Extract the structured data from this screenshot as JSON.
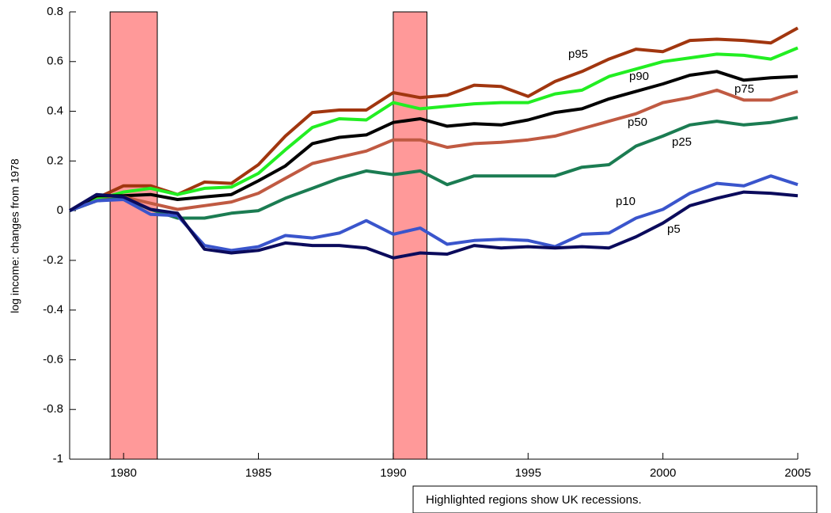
{
  "chart_data": {
    "type": "line",
    "y_label": "log income: changes from 1978",
    "note": "Highlighted regions show UK recessions.",
    "x": [
      1978,
      1979,
      1980,
      1981,
      1982,
      1983,
      1984,
      1985,
      1986,
      1987,
      1988,
      1989,
      1990,
      1991,
      1992,
      1993,
      1994,
      1995,
      1996,
      1997,
      1998,
      1999,
      2000,
      2001,
      2002,
      2003,
      2004,
      2005
    ],
    "xlim": [
      1978,
      2005
    ],
    "xticks": [
      1980,
      1985,
      1990,
      1995,
      2000,
      2005
    ],
    "ylim": [
      -1,
      0.8
    ],
    "yticks": [
      -1,
      -0.8,
      -0.6,
      -0.4,
      -0.2,
      0,
      0.2,
      0.4,
      0.6,
      0.8
    ],
    "recessions": [
      [
        1979.5,
        1981.25
      ],
      [
        1990,
        1991.25
      ]
    ],
    "recession_color": "#ff9999",
    "series": [
      {
        "name": "p95",
        "color": "#a1360f",
        "values": [
          0,
          0.05,
          0.1,
          0.1,
          0.065,
          0.115,
          0.11,
          0.185,
          0.3,
          0.395,
          0.405,
          0.405,
          0.475,
          0.455,
          0.465,
          0.505,
          0.5,
          0.46,
          0.52,
          0.56,
          0.61,
          0.65,
          0.64,
          0.685,
          0.69,
          0.685,
          0.675,
          0.735
        ]
      },
      {
        "name": "p90",
        "color": "#22ee22",
        "values": [
          0,
          0.045,
          0.075,
          0.09,
          0.065,
          0.09,
          0.095,
          0.15,
          0.245,
          0.335,
          0.37,
          0.365,
          0.435,
          0.41,
          0.42,
          0.43,
          0.435,
          0.435,
          0.47,
          0.485,
          0.54,
          0.57,
          0.6,
          0.615,
          0.63,
          0.625,
          0.61,
          0.655
        ]
      },
      {
        "name": "p75",
        "color": "#000000",
        "values": [
          0,
          0.06,
          0.06,
          0.065,
          0.045,
          0.055,
          0.065,
          0.12,
          0.18,
          0.27,
          0.295,
          0.305,
          0.355,
          0.37,
          0.34,
          0.35,
          0.345,
          0.365,
          0.395,
          0.41,
          0.45,
          0.48,
          0.51,
          0.545,
          0.56,
          0.525,
          0.535,
          0.54
        ]
      },
      {
        "name": "p50",
        "color": "#c05a42",
        "values": [
          0,
          0.04,
          0.055,
          0.03,
          0.005,
          0.02,
          0.035,
          0.07,
          0.13,
          0.19,
          0.215,
          0.24,
          0.285,
          0.285,
          0.255,
          0.27,
          0.275,
          0.285,
          0.3,
          0.33,
          0.36,
          0.39,
          0.435,
          0.455,
          0.485,
          0.445,
          0.445,
          0.48
        ]
      },
      {
        "name": "p25",
        "color": "#1b7c52",
        "values": [
          0,
          0.04,
          0.05,
          0.005,
          -0.03,
          -0.03,
          -0.01,
          0,
          0.05,
          0.09,
          0.13,
          0.16,
          0.145,
          0.16,
          0.105,
          0.14,
          0.14,
          0.14,
          0.14,
          0.175,
          0.185,
          0.26,
          0.3,
          0.345,
          0.36,
          0.345,
          0.355,
          0.375
        ]
      },
      {
        "name": "p10",
        "color": "#3a55cc",
        "values": [
          0,
          0.04,
          0.045,
          -0.015,
          -0.02,
          -0.14,
          -0.16,
          -0.145,
          -0.1,
          -0.11,
          -0.09,
          -0.04,
          -0.095,
          -0.07,
          -0.135,
          -0.12,
          -0.115,
          -0.12,
          -0.145,
          -0.095,
          -0.09,
          -0.03,
          0.005,
          0.07,
          0.11,
          0.1,
          0.14,
          0.105
        ]
      },
      {
        "name": "p5",
        "color": "#0b0b5c",
        "values": [
          0,
          0.065,
          0.055,
          0.005,
          -0.01,
          -0.155,
          -0.17,
          -0.16,
          -0.13,
          -0.14,
          -0.14,
          -0.15,
          -0.19,
          -0.17,
          -0.175,
          -0.14,
          -0.15,
          -0.145,
          -0.15,
          -0.145,
          -0.15,
          -0.105,
          -0.05,
          0.02,
          0.05,
          0.075,
          0.07,
          0.06
        ]
      }
    ]
  }
}
